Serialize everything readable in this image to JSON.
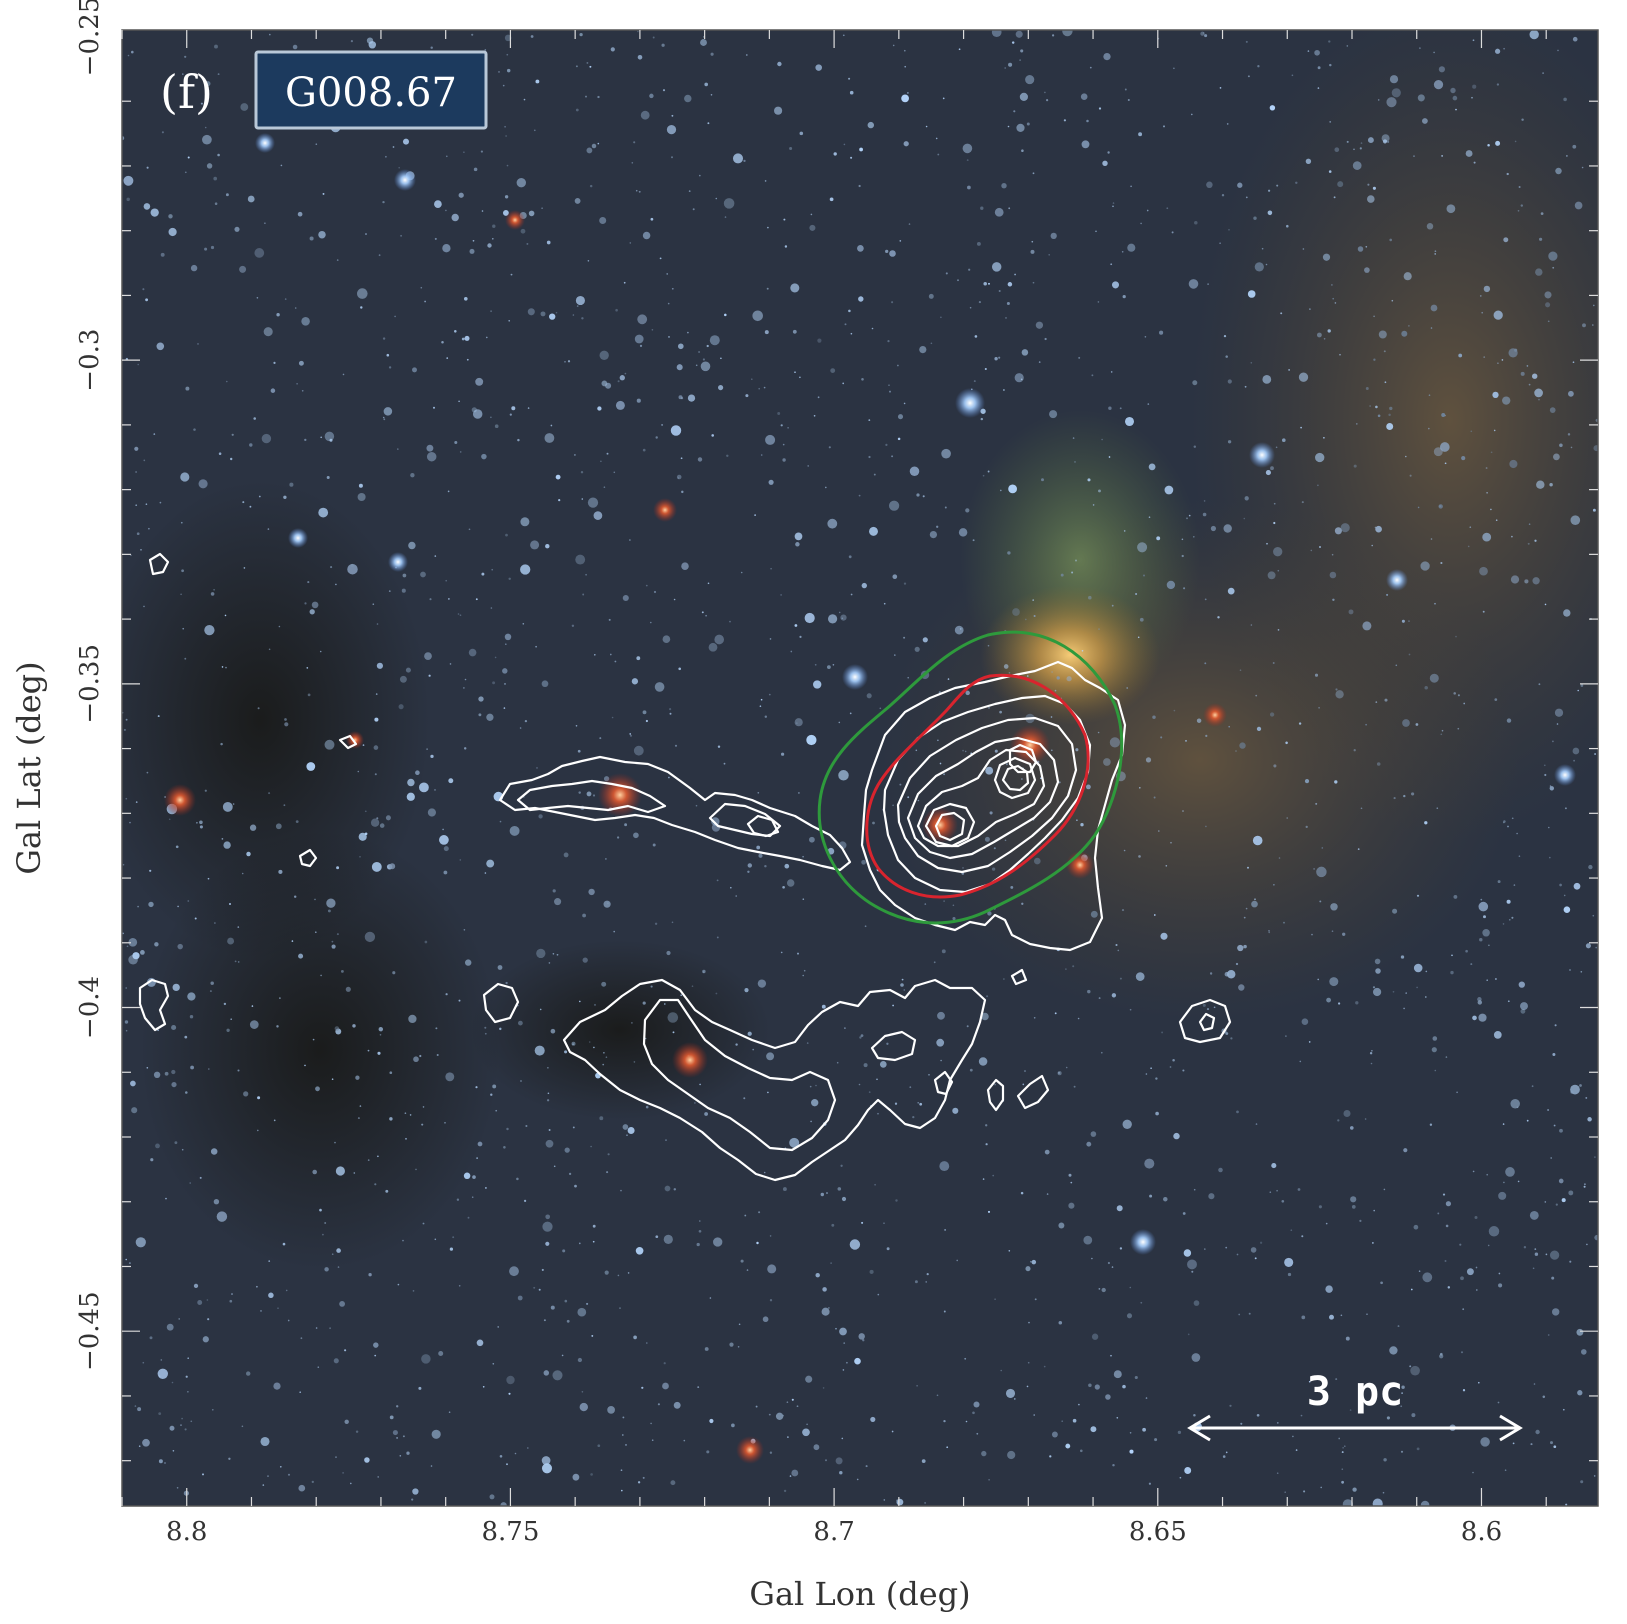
{
  "panel": {
    "letter": "(f)",
    "source_name": "G008.67"
  },
  "axes": {
    "xlabel": "Gal Lon (deg)",
    "ylabel": "Gal Lat (deg)",
    "xlim": [
      8.81,
      8.582
    ],
    "ylim": [
      -0.477,
      -0.249
    ],
    "x_ticks": [
      8.8,
      8.75,
      8.7,
      8.65,
      8.6
    ],
    "x_tick_labels": [
      "8.8",
      "8.75",
      "8.7",
      "8.65",
      "8.6"
    ],
    "y_ticks": [
      -0.25,
      -0.3,
      -0.35,
      -0.4,
      -0.45
    ],
    "y_tick_labels": [
      "−0.25",
      "−0.3",
      "−0.35",
      "−0.4",
      "−0.45"
    ]
  },
  "scale_bar": {
    "label": "3 pc"
  },
  "colors": {
    "contour": "#ffffff",
    "outer_region": "#2e9a3c",
    "inner_region": "#d9242e",
    "label_box_fill": "#1c3a5e",
    "label_box_border": "#b9c8d8",
    "sky_background": "#2b3342"
  }
}
